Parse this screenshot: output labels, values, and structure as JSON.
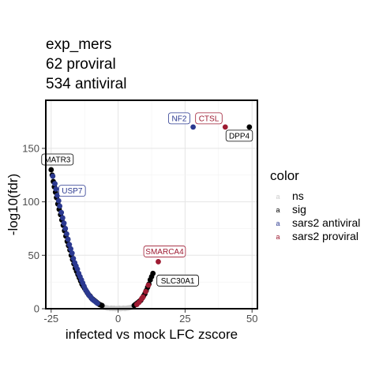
{
  "chart_data": {
    "type": "scatter",
    "title_lines": [
      "exp_mers",
      "62 proviral",
      "534 antiviral"
    ],
    "xlabel": "infected vs mock LFC zscore",
    "ylabel": "-log10(fdr)",
    "xlim": [
      -27,
      52
    ],
    "ylim": [
      0,
      195
    ],
    "xticks": [
      -25,
      0,
      25,
      50
    ],
    "yticks": [
      0,
      50,
      100,
      150
    ],
    "grid": true,
    "legend": {
      "title": "color",
      "position": "right",
      "entries": [
        {
          "label": "ns",
          "color": "#cccccc",
          "key_char": "a"
        },
        {
          "label": "sig",
          "color": "#000000",
          "key_char": "a"
        },
        {
          "label": "sars2 antiviral",
          "color": "#2b3990",
          "key_char": "a"
        },
        {
          "label": "sars2 proviral",
          "color": "#9e1b32",
          "key_char": "a"
        }
      ]
    },
    "colors": {
      "ns": "#c8c8c8",
      "sig": "#000000",
      "sars2 antiviral": "#2b3990",
      "sars2 proviral": "#9e1b32"
    },
    "series": [
      {
        "name": "ns",
        "points": [
          [
            -3,
            0.3
          ],
          [
            -2.5,
            0.5
          ],
          [
            -2,
            0.2
          ],
          [
            -1.5,
            0.4
          ],
          [
            -1,
            0.1
          ],
          [
            -0.5,
            0.3
          ],
          [
            0,
            0.2
          ],
          [
            0.5,
            0.4
          ],
          [
            1,
            0.1
          ],
          [
            1.5,
            0.3
          ],
          [
            2,
            0.5
          ],
          [
            2.5,
            0.2
          ],
          [
            3,
            0.4
          ],
          [
            3.5,
            0.6
          ],
          [
            4,
            0.8
          ],
          [
            4.5,
            1.0
          ],
          [
            -4,
            0.7
          ],
          [
            -4.5,
            0.9
          ],
          [
            -5,
            1.2
          ],
          [
            5,
            1.4
          ],
          [
            5.5,
            1.8
          ],
          [
            -5.5,
            1.6
          ]
        ]
      },
      {
        "name": "sig",
        "points": [
          [
            -25,
            130
          ],
          [
            -24.6,
            125
          ],
          [
            -24.2,
            119
          ],
          [
            -23.8,
            114
          ],
          [
            -23.4,
            109
          ],
          [
            -23,
            104
          ],
          [
            -22.5,
            98
          ],
          [
            -22,
            93
          ],
          [
            -21.5,
            88
          ],
          [
            -21,
            83
          ],
          [
            -20.5,
            78
          ],
          [
            -20,
            73
          ],
          [
            -19.5,
            68
          ],
          [
            -19,
            63
          ],
          [
            -18.5,
            59
          ],
          [
            -18,
            55
          ],
          [
            -17.5,
            50
          ],
          [
            -17,
            46
          ],
          [
            -16.5,
            42
          ],
          [
            -16,
            38
          ],
          [
            -15.5,
            35
          ],
          [
            -15,
            32
          ],
          [
            -14.5,
            29
          ],
          [
            -14,
            26
          ],
          [
            -13.5,
            23
          ],
          [
            -13,
            21
          ],
          [
            -12.5,
            19
          ],
          [
            -12,
            17
          ],
          [
            -11.5,
            15
          ],
          [
            -11,
            13
          ],
          [
            -10.5,
            12
          ],
          [
            -10,
            10
          ],
          [
            -9.5,
            9
          ],
          [
            -9,
            8
          ],
          [
            -8.5,
            7
          ],
          [
            -8,
            6
          ],
          [
            -7.5,
            5
          ],
          [
            -7,
            4
          ],
          [
            -6.5,
            3.5
          ],
          [
            -6,
            3
          ],
          [
            6,
            3
          ],
          [
            6.5,
            4
          ],
          [
            7,
            5
          ],
          [
            7.5,
            6
          ],
          [
            8,
            7
          ],
          [
            8.5,
            8
          ],
          [
            9,
            10
          ],
          [
            9.5,
            12
          ],
          [
            10,
            14
          ],
          [
            10.5,
            17
          ],
          [
            11,
            20
          ],
          [
            11.5,
            23
          ],
          [
            12,
            27
          ],
          [
            12.5,
            30
          ],
          [
            13,
            33
          ],
          [
            49,
            170
          ]
        ]
      },
      {
        "name": "sars2 antiviral",
        "points": [
          [
            -24.4,
            124
          ],
          [
            -23.6,
            117
          ],
          [
            -23.2,
            112
          ],
          [
            -22.7,
            106
          ],
          [
            -22.2,
            101
          ],
          [
            -21.8,
            96
          ],
          [
            -21.2,
            90
          ],
          [
            -20.7,
            85
          ],
          [
            -20.2,
            80
          ],
          [
            -19.7,
            75
          ],
          [
            -19.2,
            70
          ],
          [
            -18.7,
            65
          ],
          [
            -18.2,
            60
          ],
          [
            -17.7,
            56
          ],
          [
            -17.2,
            52
          ],
          [
            -16.7,
            47
          ],
          [
            -16.2,
            43
          ],
          [
            -15.7,
            40
          ],
          [
            -15.2,
            37
          ],
          [
            -14.7,
            33
          ],
          [
            -14.2,
            30
          ],
          [
            -13.7,
            27
          ],
          [
            -13.2,
            24
          ],
          [
            -12.7,
            21
          ],
          [
            -12.2,
            18
          ],
          [
            -11.7,
            16
          ],
          [
            -11.2,
            14
          ],
          [
            -10.7,
            12
          ],
          [
            -10.2,
            11
          ],
          [
            -9.7,
            9
          ],
          [
            -9.2,
            8
          ],
          [
            -8.7,
            7
          ],
          [
            -8.2,
            6
          ],
          [
            -7.7,
            5
          ],
          [
            28,
            170
          ]
        ]
      },
      {
        "name": "sars2 proviral",
        "points": [
          [
            7,
            4
          ],
          [
            7.8,
            6
          ],
          [
            8.7,
            9
          ],
          [
            9.3,
            11
          ],
          [
            10.3,
            16
          ],
          [
            11.3,
            22
          ],
          [
            15,
            44
          ],
          [
            40,
            170
          ]
        ]
      }
    ],
    "annotations": [
      {
        "label": "NF2",
        "x": 28,
        "y": 170,
        "color": "#2b3990",
        "side": "above-left"
      },
      {
        "label": "CTSL",
        "x": 40,
        "y": 170,
        "color": "#9e1b32",
        "side": "above-left"
      },
      {
        "label": "DPP4",
        "x": 49,
        "y": 170,
        "color": "#000000",
        "side": "below-left"
      },
      {
        "label": "MATR3",
        "x": -25,
        "y": 130,
        "color": "#000000",
        "side": "above"
      },
      {
        "label": "USP7",
        "x": -23.6,
        "y": 117,
        "color": "#2b3990",
        "side": "right"
      },
      {
        "label": "SMARCA4",
        "x": 15,
        "y": 44,
        "color": "#9e1b32",
        "side": "above"
      },
      {
        "label": "SLC30A1",
        "x": 13,
        "y": 33,
        "color": "#000000",
        "side": "right"
      }
    ]
  }
}
